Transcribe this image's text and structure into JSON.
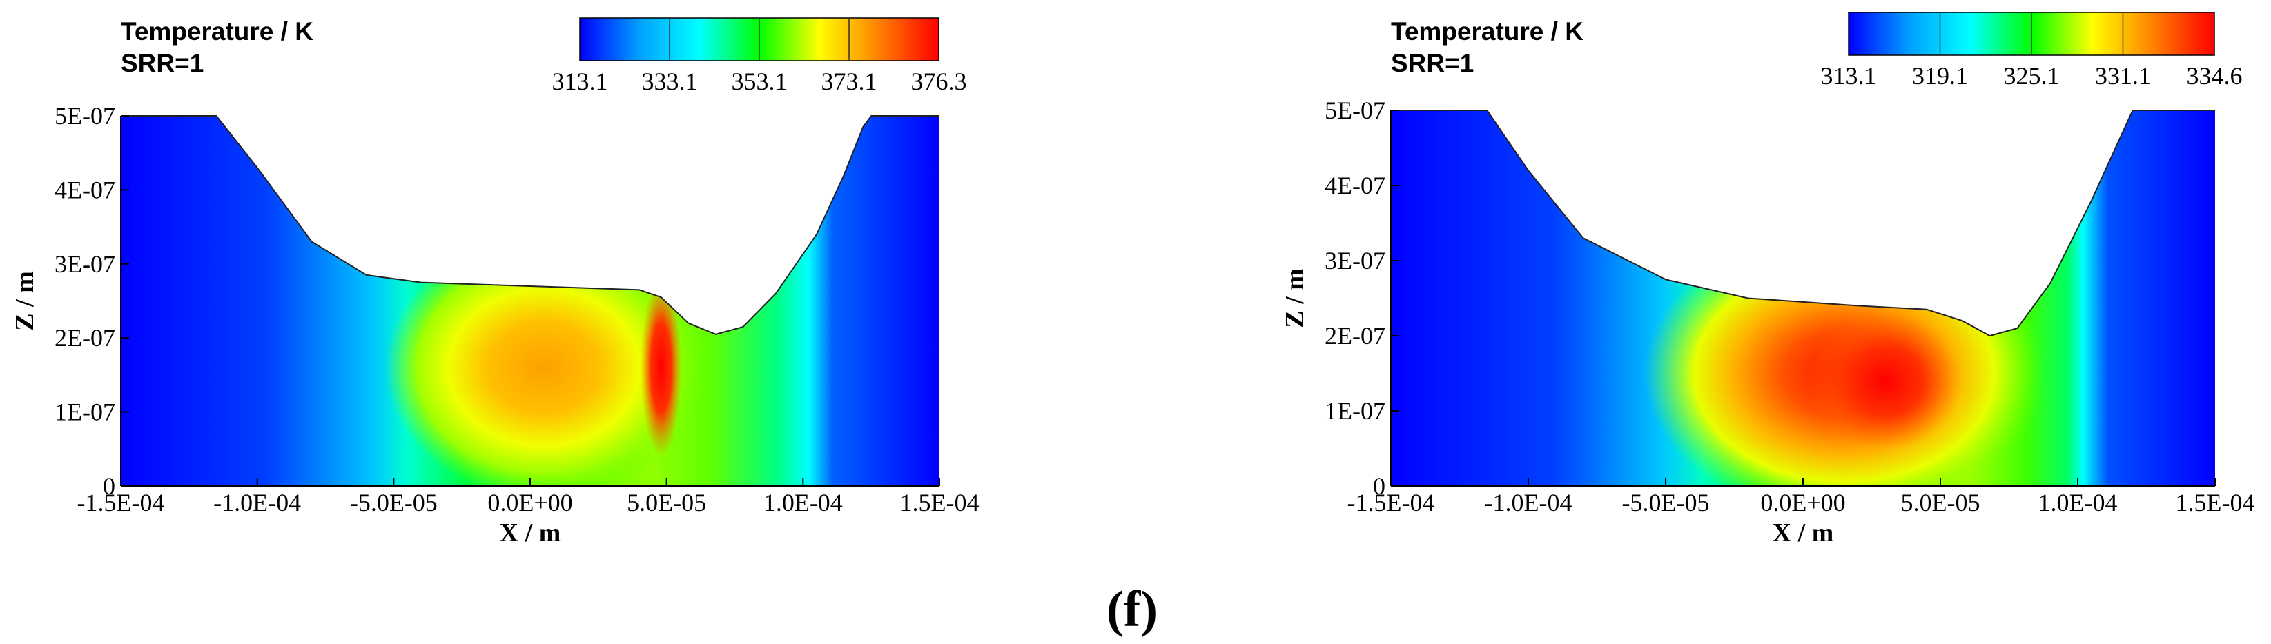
{
  "figure_label": "(f)",
  "chart_data": [
    {
      "type": "heatmap",
      "title": "Temperature / K",
      "subtitle": "SRR=1",
      "xlabel": "X / m",
      "ylabel": "Z / m",
      "xlim": [
        -0.00015,
        0.00015
      ],
      "ylim": [
        0,
        5e-07
      ],
      "x_ticks": [
        "-1.5E-04",
        "-1.0E-04",
        "-5.0E-05",
        "0.0E+00",
        "5.0E-05",
        "1.0E-04",
        "1.5E-04"
      ],
      "y_ticks": [
        "0",
        "1E-07",
        "2E-07",
        "3E-07",
        "4E-07",
        "5E-07"
      ],
      "colorbar": {
        "min": 313.1,
        "max": 376.3,
        "tick_labels": [
          "313.1",
          "333.1",
          "353.1",
          "373.1",
          "376.3"
        ],
        "colors": [
          "#0000ff",
          "#00a0ff",
          "#00ffff",
          "#00ff00",
          "#ffff00",
          "#ff8000",
          "#ff0000"
        ]
      },
      "surface_profile": [
        [
          -0.00015,
          5e-07
        ],
        [
          -0.000115,
          5e-07
        ],
        [
          -0.0001,
          4.3e-07
        ],
        [
          -8e-05,
          3.3e-07
        ],
        [
          -6e-05,
          2.85e-07
        ],
        [
          -4e-05,
          2.75e-07
        ],
        [
          0,
          2.7e-07
        ],
        [
          4e-05,
          2.65e-07
        ],
        [
          4.8e-05,
          2.55e-07
        ],
        [
          5.8e-05,
          2.2e-07
        ],
        [
          6.8e-05,
          2.05e-07
        ],
        [
          7.8e-05,
          2.15e-07
        ],
        [
          9e-05,
          2.6e-07
        ],
        [
          0.000105,
          3.4e-07
        ],
        [
          0.000115,
          4.2e-07
        ],
        [
          0.000122,
          4.85e-07
        ],
        [
          0.000125,
          5e-07
        ],
        [
          0.00015,
          5e-07
        ]
      ],
      "peak": {
        "x": 4.8e-05,
        "z": 1.6e-07,
        "T": 376.3
      }
    },
    {
      "type": "heatmap",
      "title": "Temperature / K",
      "subtitle": "SRR=1",
      "xlabel": "X / m",
      "ylabel": "Z / m",
      "xlim": [
        -0.00015,
        0.00015
      ],
      "ylim": [
        0,
        5e-07
      ],
      "x_ticks": [
        "-1.5E-04",
        "-1.0E-04",
        "-5.0E-05",
        "0.0E+00",
        "5.0E-05",
        "1.0E-04",
        "1.5E-04"
      ],
      "y_ticks": [
        "0",
        "1E-07",
        "2E-07",
        "3E-07",
        "4E-07",
        "5E-07"
      ],
      "colorbar": {
        "min": 313.1,
        "max": 334.6,
        "tick_labels": [
          "313.1",
          "319.1",
          "325.1",
          "331.1",
          "334.6"
        ],
        "colors": [
          "#0000ff",
          "#00a0ff",
          "#00ffff",
          "#00ff00",
          "#ffff00",
          "#ff8000",
          "#ff0000"
        ]
      },
      "surface_profile": [
        [
          -0.00015,
          5e-07
        ],
        [
          -0.000115,
          5e-07
        ],
        [
          -0.0001,
          4.2e-07
        ],
        [
          -8e-05,
          3.3e-07
        ],
        [
          -5e-05,
          2.75e-07
        ],
        [
          -2e-05,
          2.5e-07
        ],
        [
          2e-05,
          2.4e-07
        ],
        [
          4.5e-05,
          2.35e-07
        ],
        [
          5.8e-05,
          2.2e-07
        ],
        [
          6.8e-05,
          2e-07
        ],
        [
          7.8e-05,
          2.1e-07
        ],
        [
          9e-05,
          2.7e-07
        ],
        [
          0.000105,
          3.8e-07
        ],
        [
          0.000115,
          4.6e-07
        ],
        [
          0.00012,
          5e-07
        ],
        [
          0.00015,
          5e-07
        ]
      ],
      "peak": {
        "x": 3e-05,
        "z": 1.4e-07,
        "T": 334.6
      }
    }
  ]
}
